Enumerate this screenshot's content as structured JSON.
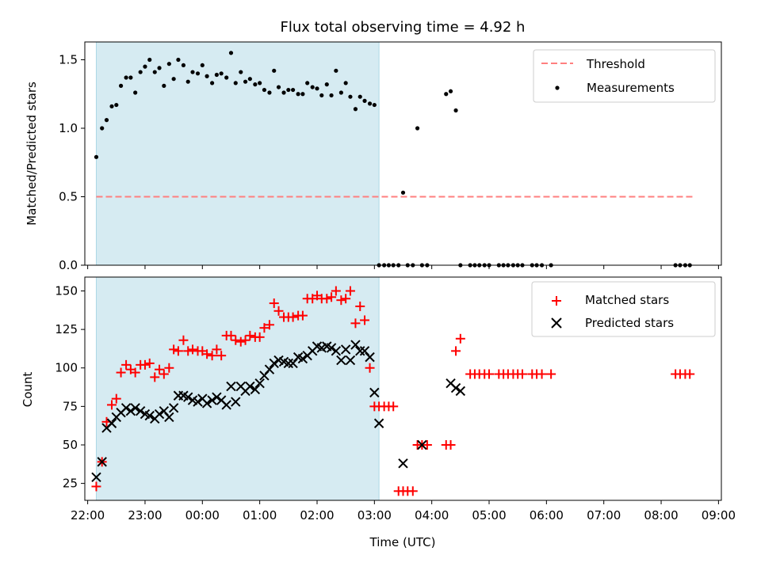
{
  "chart_data": [
    {
      "type": "scatter",
      "title": "Flux total observing time = 4.92 h",
      "ylabel": "Matched/Predicted stars",
      "xlabel": "",
      "xlim": [
        21.95,
        33.05
      ],
      "ylim": [
        0,
        1.63
      ],
      "yticks": [
        0.0,
        0.5,
        1.0,
        1.5
      ],
      "ytick_labels": [
        "0.0",
        "0.5",
        "1.0",
        "1.5"
      ],
      "shaded_interval": [
        22.15,
        27.08
      ],
      "threshold": {
        "value": 0.5,
        "x_start": 22.15,
        "x_end": 32.55,
        "color": "#ff7f7f"
      },
      "legend": {
        "position": "top-right",
        "entries": [
          "Threshold",
          "Measurements"
        ]
      },
      "series": [
        {
          "name": "Measurements",
          "color": "#000000",
          "marker": "dot",
          "x": [
            22.15,
            22.25,
            22.33,
            22.42,
            22.5,
            22.58,
            22.67,
            22.75,
            22.83,
            22.92,
            23.0,
            23.08,
            23.17,
            23.25,
            23.33,
            23.42,
            23.5,
            23.58,
            23.67,
            23.75,
            23.83,
            23.92,
            24.0,
            24.08,
            24.17,
            24.25,
            24.33,
            24.42,
            24.5,
            24.58,
            24.67,
            24.75,
            24.83,
            24.92,
            25.0,
            25.08,
            25.17,
            25.25,
            25.33,
            25.42,
            25.5,
            25.58,
            25.67,
            25.75,
            25.83,
            25.92,
            26.0,
            26.08,
            26.17,
            26.25,
            26.33,
            26.42,
            26.5,
            26.58,
            26.67,
            26.75,
            26.83,
            26.92,
            27.0,
            27.08,
            27.17,
            27.25,
            27.33,
            27.42,
            27.5,
            27.58,
            27.67,
            27.75,
            27.83,
            27.92,
            28.25,
            28.33,
            28.42,
            28.5,
            28.67,
            28.75,
            28.83,
            28.92,
            29.0,
            29.17,
            29.25,
            29.33,
            29.42,
            29.5,
            29.58,
            29.75,
            29.83,
            29.92,
            30.08,
            32.25,
            32.33,
            32.42,
            32.5
          ],
          "y": [
            0.79,
            1.0,
            1.06,
            1.16,
            1.17,
            1.31,
            1.37,
            1.37,
            1.26,
            1.41,
            1.45,
            1.5,
            1.41,
            1.44,
            1.31,
            1.47,
            1.36,
            1.5,
            1.46,
            1.34,
            1.41,
            1.4,
            1.46,
            1.38,
            1.33,
            1.39,
            1.4,
            1.37,
            1.55,
            1.33,
            1.41,
            1.34,
            1.36,
            1.32,
            1.33,
            1.28,
            1.26,
            1.42,
            1.3,
            1.26,
            1.28,
            1.28,
            1.25,
            1.25,
            1.33,
            1.3,
            1.29,
            1.24,
            1.32,
            1.24,
            1.42,
            1.26,
            1.33,
            1.23,
            1.14,
            1.23,
            1.2,
            1.18,
            1.17,
            0,
            0,
            0,
            0,
            0,
            0.53,
            0,
            0,
            1.0,
            0,
            0,
            1.25,
            1.27,
            1.13,
            0,
            0,
            0,
            0,
            0,
            0,
            0,
            0,
            0,
            0,
            0,
            0,
            0,
            0,
            0,
            0,
            0,
            0,
            0,
            0
          ]
        }
      ]
    },
    {
      "type": "scatter",
      "title": "",
      "ylabel": "Count",
      "xlabel": "Time (UTC)",
      "xlim": [
        21.95,
        33.05
      ],
      "ylim": [
        14,
        159
      ],
      "yticks": [
        25,
        50,
        75,
        100,
        125,
        150
      ],
      "ytick_labels": [
        "25",
        "50",
        "75",
        "100",
        "125",
        "150"
      ],
      "xticks": [
        22,
        23,
        24,
        25,
        26,
        27,
        28,
        29,
        30,
        31,
        32,
        33
      ],
      "xtick_labels": [
        "22:00",
        "23:00",
        "00:00",
        "01:00",
        "02:00",
        "03:00",
        "04:00",
        "05:00",
        "06:00",
        "07:00",
        "08:00",
        "09:00"
      ],
      "shaded_interval": [
        22.15,
        27.08
      ],
      "legend": {
        "position": "top-right",
        "entries": [
          "Matched stars",
          "Predicted stars"
        ]
      },
      "series": [
        {
          "name": "Matched stars",
          "color": "#ff0000",
          "marker": "plus",
          "x": [
            22.15,
            22.25,
            22.33,
            22.42,
            22.5,
            22.58,
            22.67,
            22.75,
            22.83,
            22.92,
            23.0,
            23.08,
            23.17,
            23.25,
            23.33,
            23.42,
            23.5,
            23.58,
            23.67,
            23.75,
            23.83,
            23.92,
            24.0,
            24.08,
            24.17,
            24.25,
            24.33,
            24.42,
            24.5,
            24.58,
            24.67,
            24.75,
            24.83,
            24.92,
            25.0,
            25.08,
            25.17,
            25.25,
            25.33,
            25.42,
            25.5,
            25.58,
            25.67,
            25.75,
            25.83,
            25.92,
            26.0,
            26.08,
            26.17,
            26.25,
            26.33,
            26.42,
            26.5,
            26.58,
            26.67,
            26.75,
            26.83,
            26.92,
            27.0,
            27.08,
            27.17,
            27.25,
            27.33,
            27.42,
            27.5,
            27.58,
            27.67,
            27.75,
            27.83,
            27.92,
            28.25,
            28.33,
            28.42,
            28.5,
            28.67,
            28.75,
            28.83,
            28.92,
            29.0,
            29.17,
            29.25,
            29.33,
            29.42,
            29.5,
            29.58,
            29.75,
            29.83,
            29.92,
            30.08,
            32.25,
            32.33,
            32.42,
            32.5
          ],
          "y": [
            23,
            39,
            65,
            76,
            80,
            97,
            102,
            99,
            97,
            102,
            102,
            103,
            94,
            99,
            96,
            100,
            112,
            111,
            118,
            111,
            112,
            111,
            111,
            109,
            108,
            112,
            108,
            121,
            121,
            118,
            117,
            118,
            121,
            120,
            120,
            126,
            128,
            142,
            137,
            133,
            133,
            133,
            134,
            134,
            145,
            145,
            147,
            145,
            145,
            146,
            150,
            144,
            145,
            150,
            129,
            140,
            131,
            100,
            75,
            75,
            75,
            75,
            75,
            20,
            20,
            20,
            20,
            50,
            50,
            50,
            50,
            50,
            111,
            119,
            96,
            96,
            96,
            96,
            96,
            96,
            96,
            96,
            96,
            96,
            96,
            96,
            96,
            96,
            96,
            96,
            96,
            96,
            96
          ]
        },
        {
          "name": "Predicted stars",
          "color": "#000000",
          "marker": "x",
          "x": [
            22.15,
            22.25,
            22.33,
            22.42,
            22.5,
            22.58,
            22.67,
            22.75,
            22.83,
            22.92,
            23.0,
            23.08,
            23.17,
            23.25,
            23.33,
            23.42,
            23.5,
            23.58,
            23.67,
            23.75,
            23.83,
            23.92,
            24.0,
            24.08,
            24.17,
            24.25,
            24.33,
            24.42,
            24.5,
            24.58,
            24.67,
            24.75,
            24.83,
            24.92,
            25.0,
            25.08,
            25.17,
            25.25,
            25.33,
            25.42,
            25.5,
            25.58,
            25.67,
            25.75,
            25.83,
            25.92,
            26.0,
            26.08,
            26.17,
            26.25,
            26.33,
            26.42,
            26.5,
            26.58,
            26.67,
            26.75,
            26.83,
            26.92,
            27.0,
            27.08,
            27.5,
            27.83,
            28.33,
            28.42,
            28.5
          ],
          "y": [
            29,
            39,
            61,
            64,
            68,
            71,
            74,
            72,
            74,
            72,
            70,
            69,
            67,
            70,
            72,
            68,
            74,
            82,
            82,
            81,
            79,
            78,
            80,
            77,
            79,
            81,
            79,
            76,
            88,
            78,
            88,
            85,
            88,
            86,
            90,
            95,
            99,
            103,
            105,
            104,
            103,
            103,
            107,
            106,
            108,
            111,
            114,
            113,
            114,
            113,
            111,
            105,
            112,
            105,
            115,
            111,
            111,
            107,
            84,
            64,
            38,
            50,
            90,
            87,
            85
          ]
        }
      ]
    }
  ]
}
